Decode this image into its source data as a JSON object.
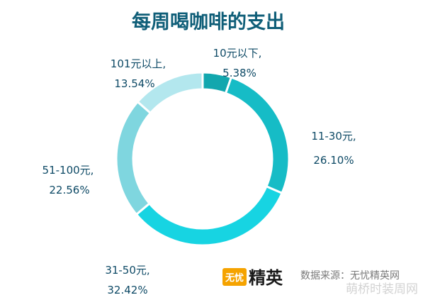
{
  "chart_data": {
    "type": "pie",
    "donut": true,
    "title": "每周喝咖啡的支出",
    "categories": [
      "10元以下",
      "11-30元",
      "31-50元",
      "51-100元",
      "101元以上"
    ],
    "values": [
      5.38,
      26.1,
      32.42,
      22.56,
      13.54
    ],
    "labels": [
      {
        "category": "10元以下,",
        "value": "5.38%"
      },
      {
        "category": "11-30元,",
        "value": "26.10%"
      },
      {
        "category": "31-50元,",
        "value": "32.42%"
      },
      {
        "category": "51-100元,",
        "value": "22.56%"
      },
      {
        "category": "101元以上,",
        "value": "13.54%"
      }
    ],
    "colors": [
      "#12a7ae",
      "#16bcc6",
      "#17d4e2",
      "#7fd6df",
      "#b3e7ee"
    ],
    "legend": "none"
  },
  "logo": {
    "badge_text": "无忧",
    "brand_text": "精英",
    "badge_color": "#f5a300"
  },
  "source": "数据来源：无忧精英网",
  "watermark": "萌桥时装周网"
}
